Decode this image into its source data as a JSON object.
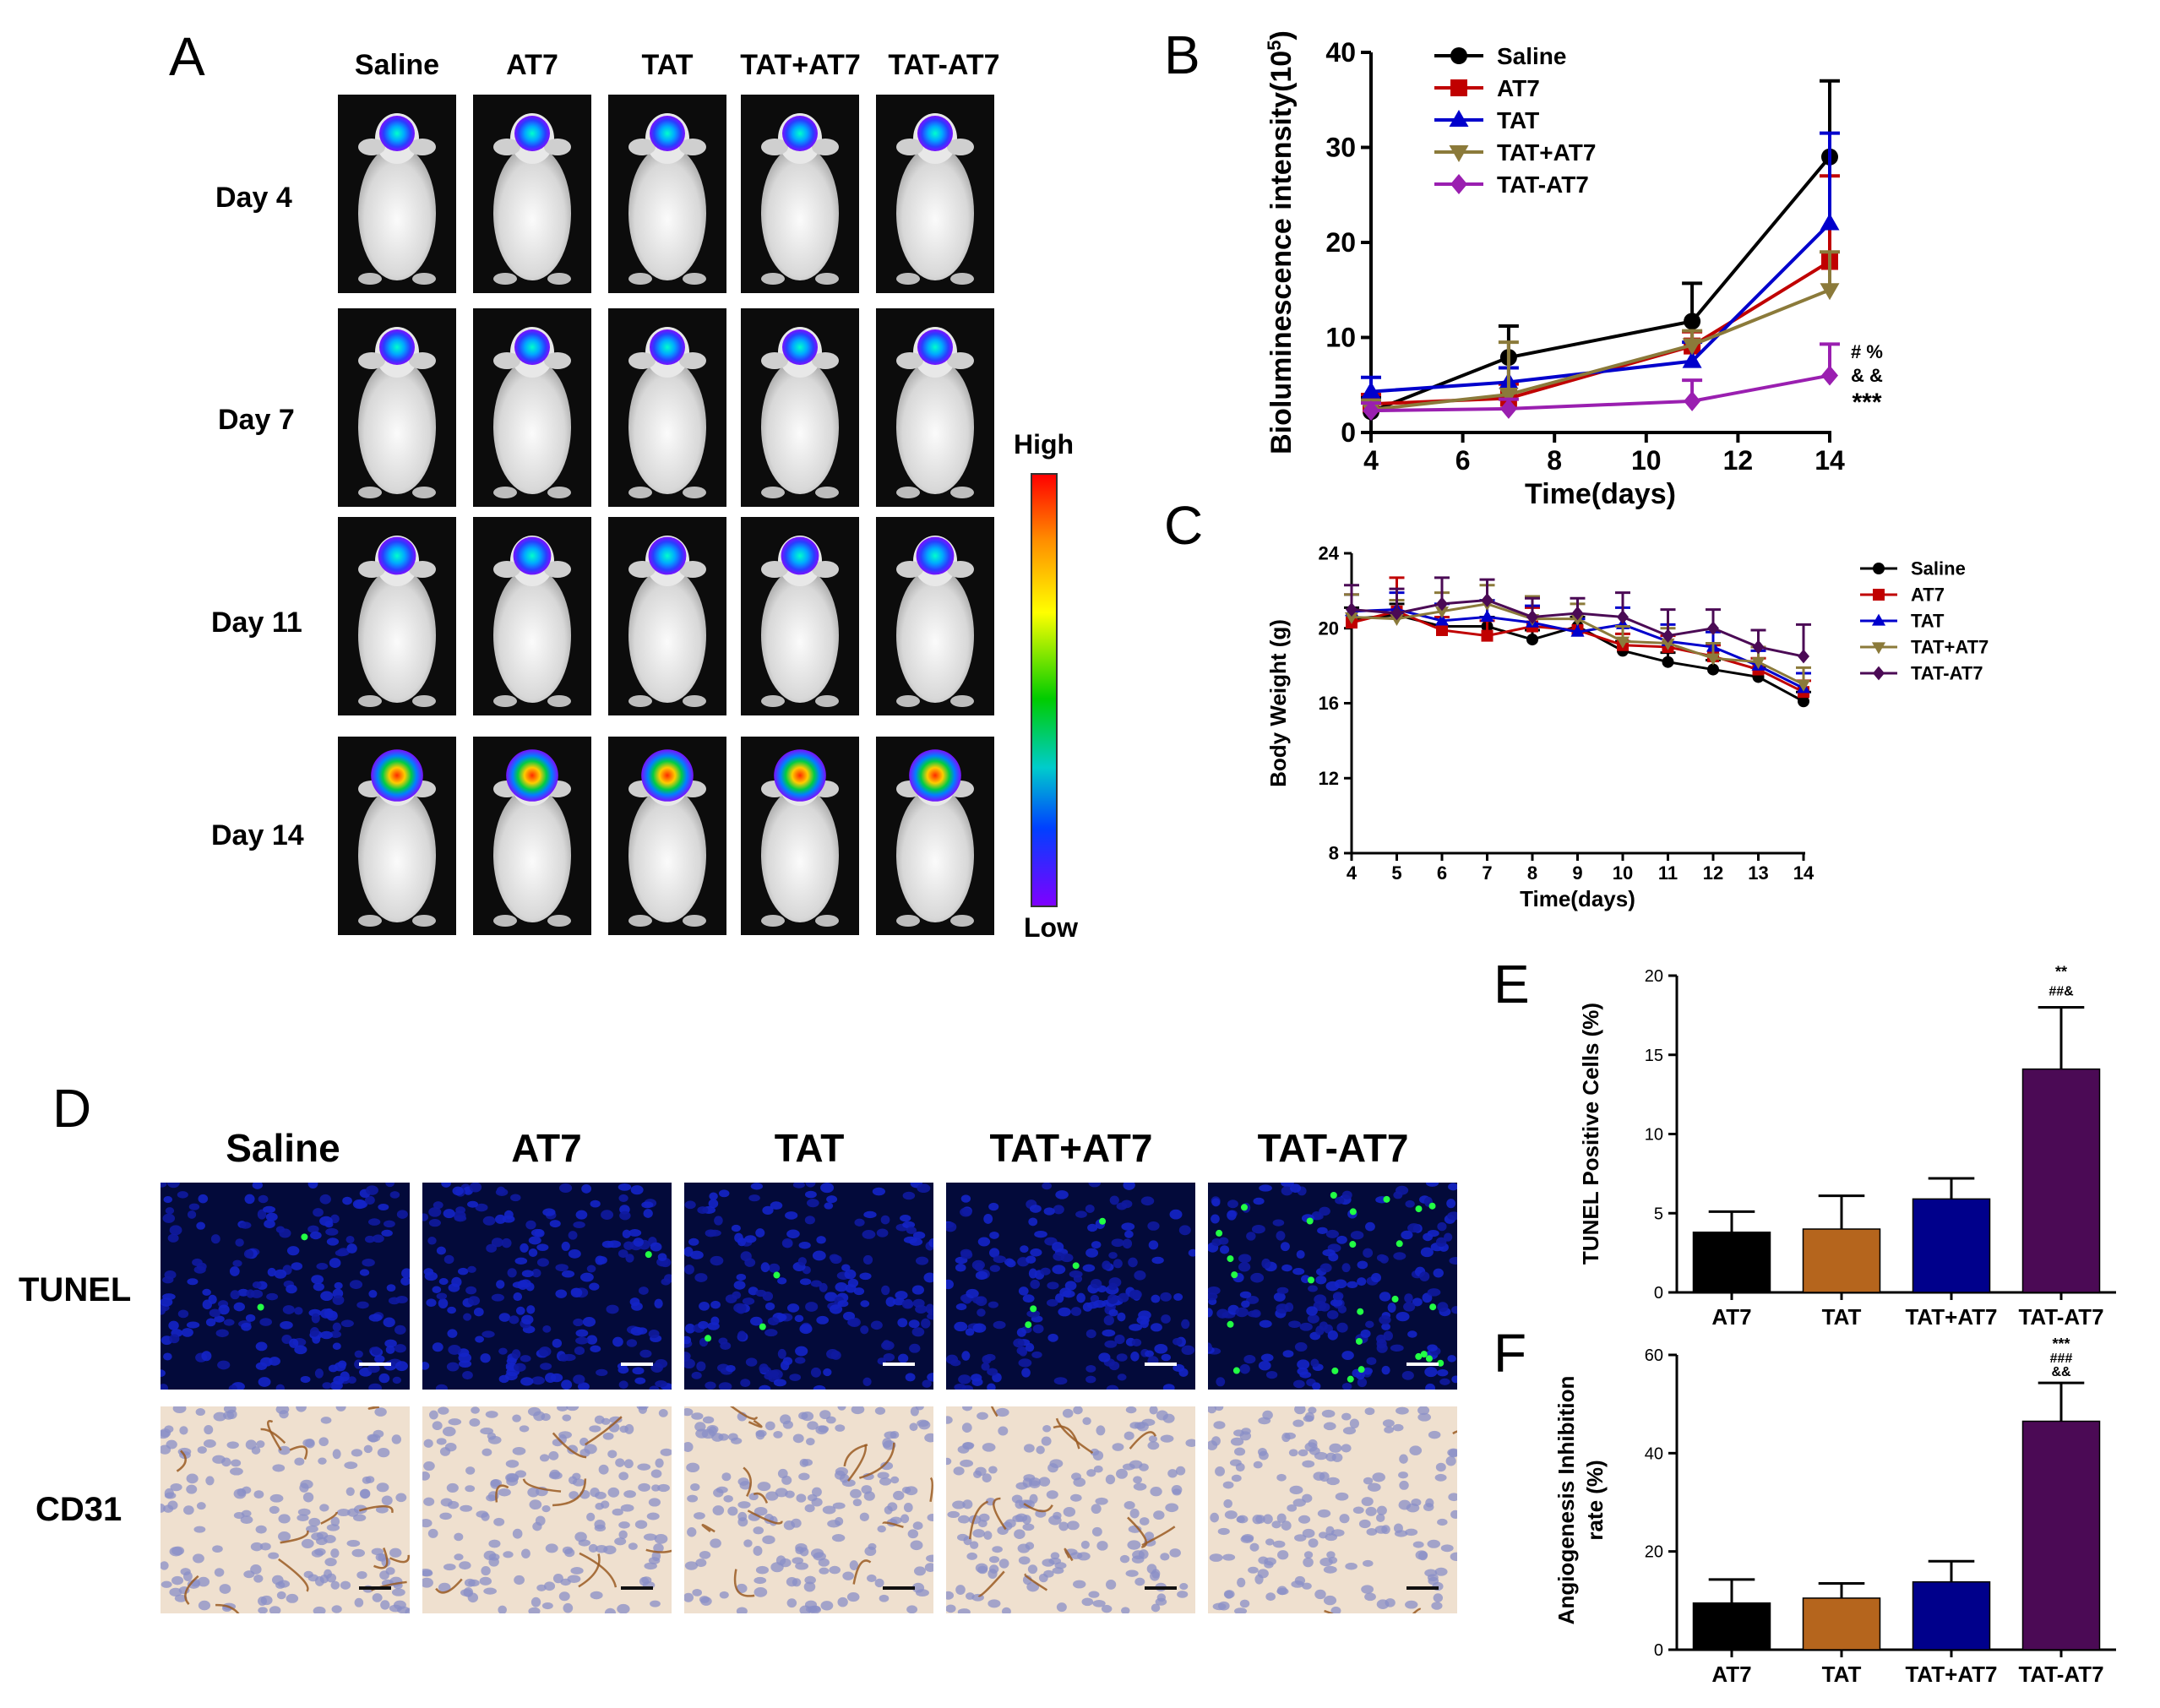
{
  "panels": {
    "a": "A",
    "b": "B",
    "c": "C",
    "d": "D",
    "e": "E",
    "f": "F"
  },
  "groups5": [
    "Saline",
    "AT7",
    "TAT",
    "TAT+AT7",
    "TAT-AT7"
  ],
  "days_rows": [
    "Day  4",
    "Day  7",
    "Day 11",
    "Day 14"
  ],
  "colorbar": {
    "high": "High",
    "low": "Low"
  },
  "stain_rows": [
    "TUNEL",
    "CD31"
  ],
  "colors": {
    "Saline": "#000000",
    "AT7": "#c00000",
    "TAT": "#0000cc",
    "TAT+AT7": "#8b7a3a",
    "TAT-AT7": "#9a1fb0",
    "TAT-AT7_C": "#4b0a55"
  },
  "chart_data": [
    {
      "id": "B",
      "type": "line",
      "xlabel": "Time(days)",
      "ylabel": "Bioluminescence intensity(10⁵)",
      "ylabel_main": "Bioluminescence intensity(10",
      "ylabel_sup": "5",
      "ylabel_end": ")",
      "xlim": [
        4,
        14
      ],
      "ylim": [
        0,
        40
      ],
      "xticks": [
        "4",
        "6",
        "8",
        "10",
        "12",
        "14"
      ],
      "yticks": [
        "0",
        "10",
        "20",
        "30",
        "40"
      ],
      "x": [
        4,
        7,
        11,
        14
      ],
      "series": [
        {
          "name": "Saline",
          "marker": "circle",
          "values": [
            2.2,
            7.9,
            11.7,
            29.0
          ],
          "err": [
            1.5,
            3.3,
            4.0,
            8.0
          ]
        },
        {
          "name": "AT7",
          "marker": "square",
          "values": [
            3.0,
            3.6,
            9.1,
            18.0
          ],
          "err": [
            1.0,
            1.5,
            1.5,
            9.0
          ]
        },
        {
          "name": "TAT",
          "marker": "triangle-up",
          "values": [
            4.3,
            5.3,
            7.5,
            22.0
          ],
          "err": [
            1.5,
            1.5,
            2.0,
            9.5
          ]
        },
        {
          "name": "TAT+AT7",
          "marker": "triangle-down",
          "values": [
            2.4,
            4.0,
            9.2,
            15.0
          ],
          "err": [
            1.0,
            5.5,
            1.5,
            4.0
          ]
        },
        {
          "name": "TAT-AT7",
          "marker": "diamond",
          "values": [
            2.3,
            2.5,
            3.3,
            6.0
          ],
          "err": [
            0.8,
            1.0,
            2.2,
            3.3
          ]
        }
      ],
      "annotations": [
        "# %",
        "& &",
        "***"
      ]
    },
    {
      "id": "C",
      "type": "line",
      "xlabel": "Time(days)",
      "ylabel": "Body Weight (g)",
      "xlim": [
        4,
        14
      ],
      "ylim": [
        8,
        24
      ],
      "xticks": [
        "4",
        "5",
        "6",
        "7",
        "8",
        "9",
        "10",
        "11",
        "12",
        "13",
        "14"
      ],
      "yticks": [
        "8",
        "12",
        "16",
        "20",
        "24"
      ],
      "x": [
        4,
        5,
        6,
        7,
        8,
        9,
        10,
        11,
        12,
        13,
        14
      ],
      "series": [
        {
          "name": "Saline",
          "marker": "circle",
          "values": [
            20.5,
            20.7,
            20.1,
            20.1,
            19.4,
            20.1,
            18.8,
            18.2,
            17.8,
            17.4,
            16.1
          ],
          "err": [
            0.6,
            0.6,
            0.5,
            0.5,
            0.5,
            0.5,
            0.5,
            0.5,
            0.5,
            0.5,
            0.5
          ]
        },
        {
          "name": "AT7",
          "marker": "square",
          "values": [
            20.3,
            20.9,
            19.9,
            19.6,
            20.1,
            19.9,
            19.1,
            19.0,
            18.5,
            17.8,
            16.6
          ],
          "err": [
            1.5,
            1.8,
            0.7,
            0.8,
            1.0,
            0.6,
            0.6,
            0.6,
            0.6,
            0.6,
            0.6
          ]
        },
        {
          "name": "TAT",
          "marker": "triangle-up",
          "values": [
            20.9,
            21.0,
            20.4,
            20.6,
            20.3,
            19.8,
            20.2,
            19.3,
            19.0,
            18.0,
            16.8
          ],
          "err": [
            0.9,
            0.9,
            0.9,
            0.9,
            0.9,
            0.7,
            0.9,
            0.9,
            0.8,
            0.8,
            0.8
          ]
        },
        {
          "name": "TAT+AT7",
          "marker": "triangle-down",
          "values": [
            20.6,
            20.5,
            20.9,
            21.3,
            20.5,
            20.5,
            19.3,
            19.2,
            18.4,
            18.2,
            17.0
          ],
          "err": [
            1.2,
            1.0,
            1.0,
            1.0,
            1.2,
            0.8,
            0.8,
            0.8,
            0.8,
            0.8,
            0.9
          ]
        },
        {
          "name": "TAT-AT7",
          "marker": "diamond",
          "values": [
            21.0,
            20.8,
            21.3,
            21.5,
            20.6,
            20.8,
            20.6,
            19.6,
            20.0,
            19.0,
            18.5
          ],
          "err": [
            1.3,
            1.3,
            1.4,
            1.1,
            1.0,
            0.8,
            1.3,
            1.4,
            1.0,
            0.9,
            1.7
          ]
        }
      ]
    },
    {
      "id": "E",
      "type": "bar",
      "ylabel": "TUNEL Positive Cells (%)",
      "ylim": [
        0,
        20
      ],
      "yticks": [
        "0",
        "5",
        "10",
        "15",
        "20"
      ],
      "categories": [
        "AT7",
        "TAT",
        "TAT+AT7",
        "TAT-AT7"
      ],
      "values": [
        3.8,
        4.0,
        5.9,
        14.1
      ],
      "err": [
        1.3,
        2.1,
        1.3,
        3.9
      ],
      "bar_colors": [
        "#000000",
        "#b5651d",
        "#00008b",
        "#4b0a55"
      ],
      "annotations": [
        "**",
        "##&"
      ]
    },
    {
      "id": "F",
      "type": "bar",
      "ylabel_line1": "Angiogenesis Inhibition",
      "ylabel_line2": "rate (%)",
      "ylim": [
        0,
        60
      ],
      "yticks": [
        "0",
        "20",
        "40",
        "60"
      ],
      "categories": [
        "AT7",
        "TAT",
        "TAT+AT7",
        "TAT-AT7"
      ],
      "values": [
        9.5,
        10.5,
        13.8,
        46.5
      ],
      "err": [
        4.8,
        3.0,
        4.2,
        7.8
      ],
      "bar_colors": [
        "#000000",
        "#b5651d",
        "#00008b",
        "#4b0a55"
      ],
      "annotations": [
        "***",
        "###",
        "&&"
      ]
    }
  ]
}
